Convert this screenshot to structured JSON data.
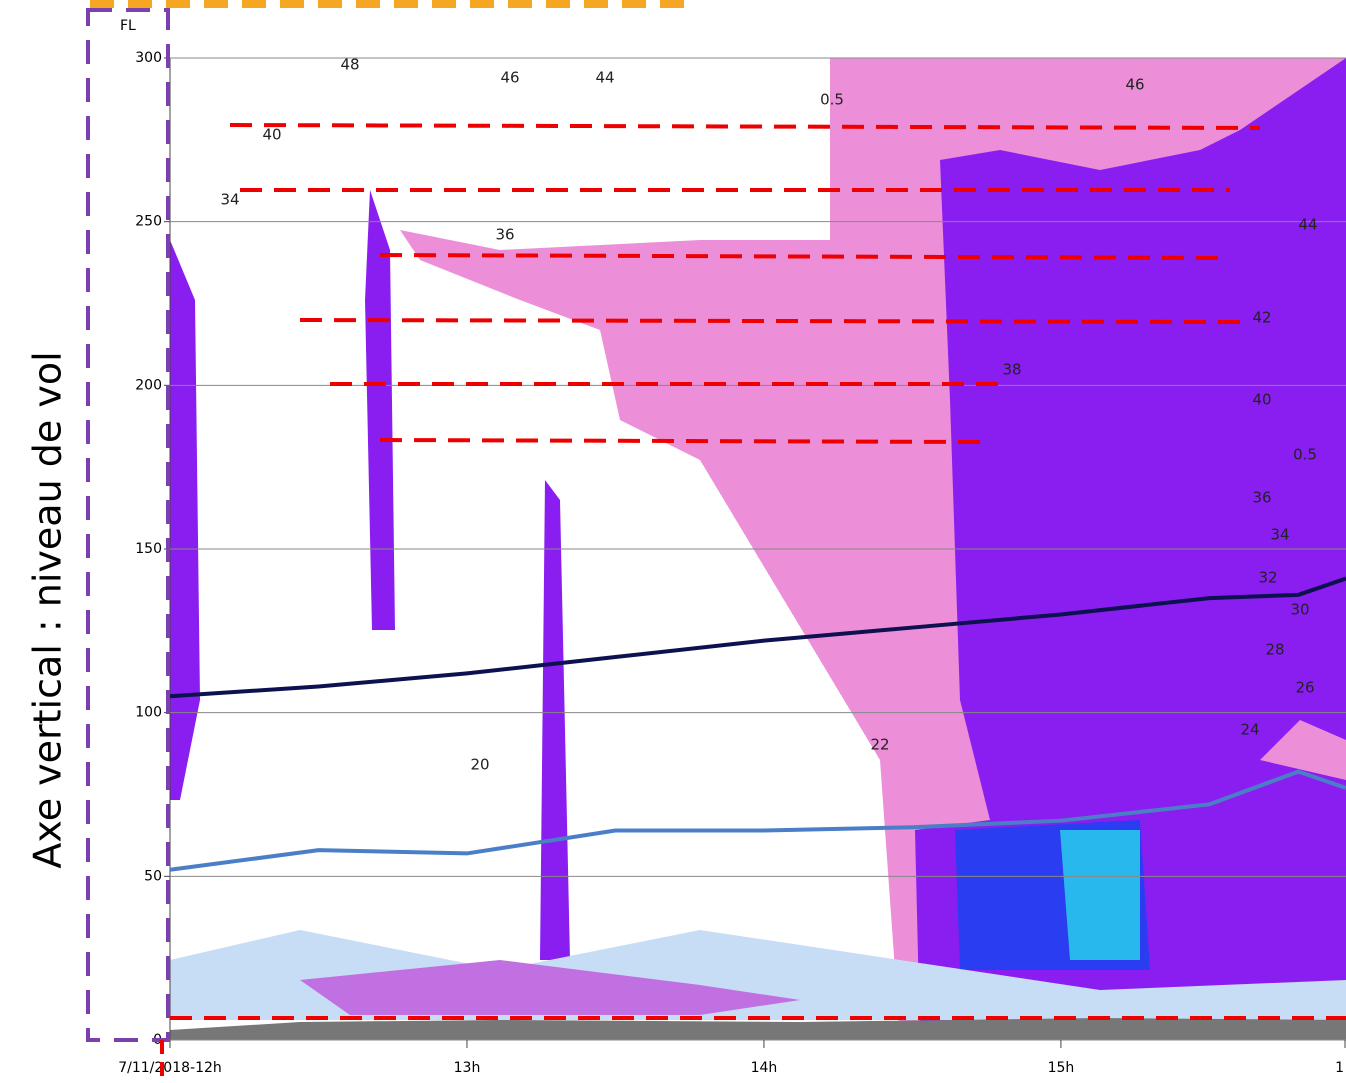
{
  "chart_data": {
    "type": "line",
    "ylabel": "Axe vertical : niveau de vol",
    "yunit": "FL",
    "xlim": [
      12,
      15.96
    ],
    "ylim": [
      0,
      300
    ],
    "yticks": [
      0,
      50,
      100,
      150,
      200,
      250,
      300
    ],
    "xticks": [
      {
        "value": 12,
        "label": "7/11/2018-12h"
      },
      {
        "value": 13,
        "label": "13h"
      },
      {
        "value": 14,
        "label": "14h"
      },
      {
        "value": 15,
        "label": "15h"
      },
      {
        "value": 16,
        "label": "1"
      }
    ],
    "grid": true,
    "x": [
      12,
      12.5,
      13,
      13.5,
      14,
      14.5,
      15,
      15.5,
      15.8,
      15.96
    ],
    "series": [
      {
        "color": "#0d1150",
        "values": [
          105,
          108,
          112,
          117,
          122,
          126,
          130,
          135,
          136,
          141
        ]
      },
      {
        "color": "#4a7fc8",
        "values": [
          52,
          58,
          57,
          64,
          64,
          65,
          67,
          72,
          82,
          77
        ]
      }
    ],
    "annotations": [
      "48",
      "46",
      "44",
      "40",
      "34",
      "36",
      "38",
      "40",
      "42",
      "44",
      "46",
      "36",
      "34",
      "32",
      "30",
      "28",
      "26",
      "24",
      "22",
      "20",
      "0.5",
      "0.5"
    ]
  }
}
